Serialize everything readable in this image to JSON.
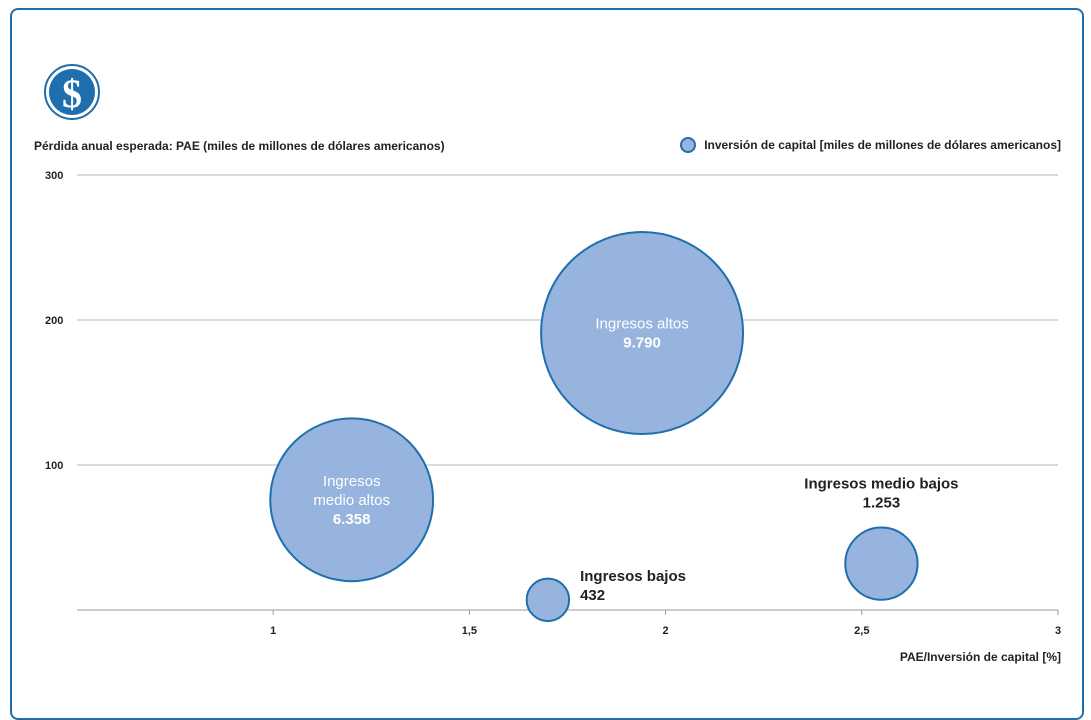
{
  "chart_data": {
    "type": "scatter",
    "title": "",
    "ylabel": "Pérdida anual esperada: PAE (miles de millones de dólares americanos)",
    "xlabel": "PAE/Inversión de capital [%]",
    "legend": {
      "label": "Inversión de capital [miles de millones de dólares americanos]",
      "placement": "top-right"
    },
    "xlim": [
      0.5,
      3
    ],
    "ylim": [
      0,
      300
    ],
    "x_ticks": [
      "1",
      "1,5",
      "2",
      "2,5",
      "3"
    ],
    "x_tick_values": [
      1,
      1.5,
      2,
      2.5,
      3
    ],
    "y_ticks": [
      "100",
      "200",
      "300"
    ],
    "y_tick_values": [
      100,
      200,
      300
    ],
    "grid": "horizontal",
    "bubble_color": "#97b4de",
    "bubble_stroke": "#1f6fae",
    "points": [
      {
        "name": "Ingresos altos",
        "x": 1.94,
        "y": 191,
        "size": 9790,
        "value_label": "9.790",
        "label_lines": [
          "Ingresos altos",
          "9.790"
        ],
        "label_position": "inside"
      },
      {
        "name": "Ingresos medio altos",
        "x": 1.2,
        "y": 76,
        "size": 6358,
        "value_label": "6.358",
        "label_lines": [
          "Ingresos",
          "medio altos",
          "6.358"
        ],
        "label_position": "inside"
      },
      {
        "name": "Ingresos bajos",
        "x": 1.7,
        "y": 7,
        "size": 432,
        "value_label": "432",
        "label_lines": [
          "Ingresos bajos",
          "432"
        ],
        "label_position": "right"
      },
      {
        "name": "Ingresos medio bajos",
        "x": 2.55,
        "y": 32,
        "size": 1253,
        "value_label": "1.253",
        "label_lines": [
          "Ingresos medio bajos",
          "1.253"
        ],
        "label_position": "above"
      }
    ]
  },
  "logo_icon": "dollar-icon"
}
